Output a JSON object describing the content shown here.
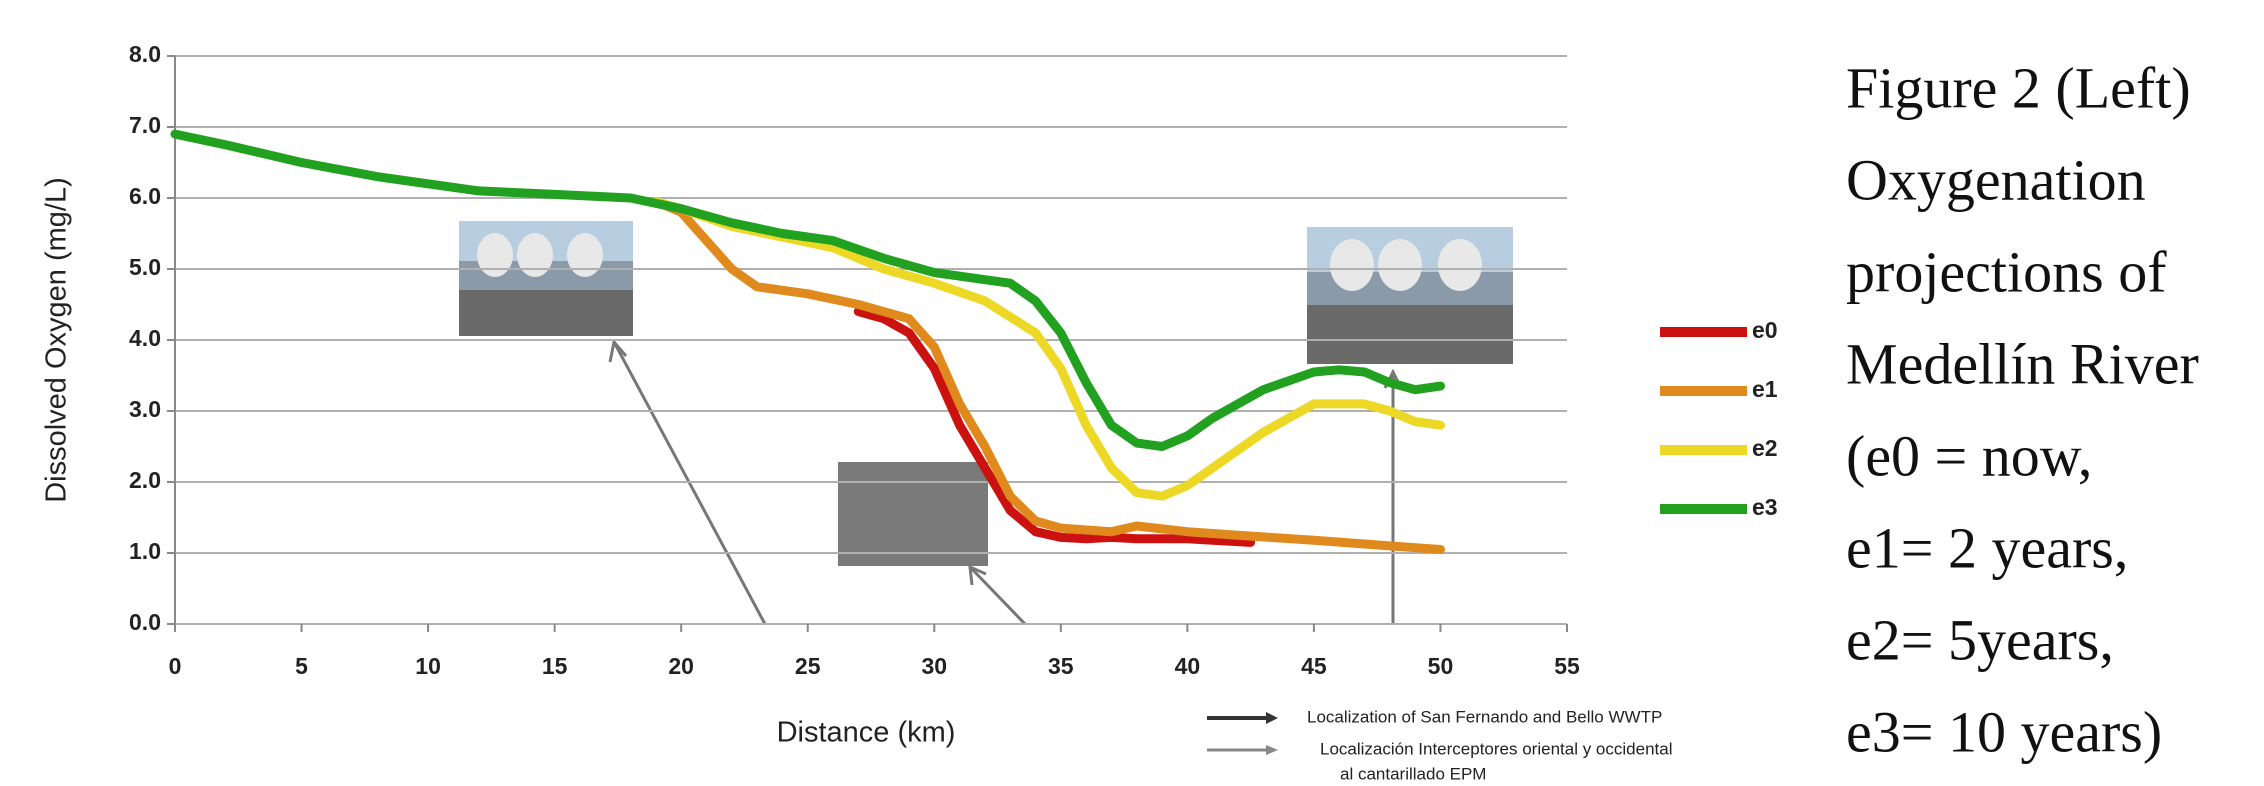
{
  "chart_data": {
    "type": "line",
    "xlabel": "Distance (km)",
    "ylabel": "Dissolved Oxygen (mg/L)",
    "xlim": [
      0,
      55
    ],
    "xticks": [
      0,
      5,
      10,
      15,
      20,
      25,
      30,
      35,
      40,
      45,
      50,
      55
    ],
    "ylim": [
      0,
      8
    ],
    "yticks": [
      {
        "value": 0,
        "label": "0.0"
      },
      {
        "value": 1,
        "label": "1.0"
      },
      {
        "value": 2,
        "label": "2.0"
      },
      {
        "value": 3,
        "label": "3.0"
      },
      {
        "value": 4,
        "label": "4.0"
      },
      {
        "value": 5,
        "label": "5.0"
      },
      {
        "value": 6,
        "label": "6.0"
      },
      {
        "value": 7,
        "label": "7.0"
      },
      {
        "value": 8,
        "label": "8.0"
      }
    ],
    "grid": true,
    "series": [
      {
        "name": "e0",
        "color": "#cc1111",
        "x": [
          27,
          28,
          29,
          30,
          31,
          32,
          33,
          34,
          35,
          36,
          37,
          38,
          40,
          41,
          42.5
        ],
        "values": [
          4.4,
          4.3,
          4.1,
          3.6,
          2.8,
          2.2,
          1.6,
          1.3,
          1.22,
          1.2,
          1.22,
          1.2,
          1.2,
          1.18,
          1.15
        ]
      },
      {
        "name": "e1",
        "color": "#e08a1e",
        "x": [
          19,
          20,
          21,
          22,
          23,
          25,
          27,
          29,
          30,
          31,
          32,
          33,
          34,
          35,
          37,
          38,
          40,
          42,
          45,
          48,
          50
        ],
        "values": [
          5.95,
          5.8,
          5.4,
          5.0,
          4.75,
          4.65,
          4.5,
          4.3,
          3.9,
          3.1,
          2.5,
          1.8,
          1.45,
          1.35,
          1.3,
          1.38,
          1.3,
          1.25,
          1.18,
          1.1,
          1.05
        ]
      },
      {
        "name": "e2",
        "color": "#ecd825",
        "x": [
          19,
          20,
          22,
          24,
          26,
          28,
          30,
          32,
          34,
          35,
          36,
          37,
          38,
          39,
          40,
          41,
          43,
          45,
          47,
          48,
          49,
          50
        ],
        "values": [
          5.95,
          5.85,
          5.6,
          5.45,
          5.3,
          5.0,
          4.8,
          4.55,
          4.1,
          3.6,
          2.8,
          2.2,
          1.85,
          1.8,
          1.95,
          2.2,
          2.7,
          3.1,
          3.1,
          3.0,
          2.85,
          2.8
        ]
      },
      {
        "name": "e3",
        "color": "#22a020",
        "x": [
          0,
          2,
          5,
          8,
          10,
          12,
          15,
          18,
          20,
          22,
          24,
          26,
          28,
          30,
          32,
          33,
          34,
          35,
          36,
          37,
          38,
          39,
          40,
          41,
          43,
          45,
          46,
          47,
          48,
          49,
          50
        ],
        "values": [
          6.9,
          6.75,
          6.5,
          6.3,
          6.2,
          6.1,
          6.05,
          6.0,
          5.85,
          5.65,
          5.5,
          5.4,
          5.15,
          4.95,
          4.85,
          4.8,
          4.55,
          4.1,
          3.4,
          2.8,
          2.55,
          2.5,
          2.65,
          2.9,
          3.3,
          3.55,
          3.58,
          3.55,
          3.4,
          3.3,
          3.35
        ]
      }
    ],
    "notes": [
      "Localization of San Fernando and Bello WWTP",
      "Localización Interceptores oriental y occidental",
      "al cantarillado EPM"
    ],
    "caption": [
      "Figure 2 (Left)",
      "Oxygenation",
      "projections of",
      "Medellín River",
      "(e0 = now,",
      "e1= 2 years,",
      "e2= 5years,",
      "e3= 10 years)"
    ]
  }
}
